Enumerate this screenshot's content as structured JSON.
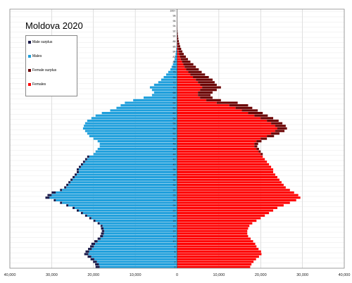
{
  "chart_data": {
    "type": "bar",
    "orientation": "horizontal",
    "title": "Moldova 2020",
    "xlabel": "",
    "ylabel": "",
    "xlim": [
      -40000,
      40000
    ],
    "x_ticks": [
      -40000,
      -30000,
      -20000,
      -10000,
      0,
      10000,
      20000,
      30000,
      40000
    ],
    "x_tick_labels": [
      "40,000",
      "30,000",
      "20,000",
      "10,000",
      "0",
      "10,000",
      "20,000",
      "30,000",
      "40,000"
    ],
    "age_tick_labels": [
      "0",
      "2",
      "4",
      "6",
      "8",
      "10",
      "12",
      "14",
      "16",
      "18",
      "20",
      "22",
      "24",
      "26",
      "28",
      "30",
      "32",
      "34",
      "36",
      "38",
      "40",
      "42",
      "44",
      "46",
      "48",
      "50",
      "52",
      "54",
      "56",
      "58",
      "60",
      "62",
      "64",
      "66",
      "68",
      "70",
      "72",
      "74",
      "76",
      "78",
      "80",
      "82",
      "84",
      "86",
      "88",
      "90",
      "92",
      "94",
      "96",
      "98",
      "100+"
    ],
    "categories": [
      "0",
      "1",
      "2",
      "3",
      "4",
      "5",
      "6",
      "7",
      "8",
      "9",
      "10",
      "11",
      "12",
      "13",
      "14",
      "15",
      "16",
      "17",
      "18",
      "19",
      "20",
      "21",
      "22",
      "23",
      "24",
      "25",
      "26",
      "27",
      "28",
      "29",
      "30",
      "31",
      "32",
      "33",
      "34",
      "35",
      "36",
      "37",
      "38",
      "39",
      "40",
      "41",
      "42",
      "43",
      "44",
      "45",
      "46",
      "47",
      "48",
      "49",
      "50",
      "51",
      "52",
      "53",
      "54",
      "55",
      "56",
      "57",
      "58",
      "59",
      "60",
      "61",
      "62",
      "63",
      "64",
      "65",
      "66",
      "67",
      "68",
      "69",
      "70",
      "71",
      "72",
      "73",
      "74",
      "75",
      "76",
      "77",
      "78",
      "79",
      "80",
      "81",
      "82",
      "83",
      "84",
      "85",
      "86",
      "87",
      "88",
      "89",
      "90",
      "91",
      "92",
      "93",
      "94",
      "95",
      "96",
      "97",
      "98",
      "99",
      "100+"
    ],
    "series": [
      {
        "name": "Males",
        "values": [
          18500,
          18700,
          19200,
          19800,
          20500,
          21200,
          21000,
          20400,
          19900,
          19600,
          19000,
          18300,
          17700,
          17500,
          17400,
          17600,
          17800,
          18500,
          19500,
          20500,
          21500,
          22500,
          23500,
          24500,
          26000,
          27500,
          29000,
          30500,
          30000,
          29000,
          27500,
          26500,
          26000,
          25500,
          25000,
          24500,
          24000,
          23500,
          23500,
          23000,
          22500,
          22000,
          21500,
          21000,
          20000,
          19500,
          19000,
          18500,
          18500,
          19000,
          20000,
          21000,
          21500,
          22000,
          22500,
          22300,
          22000,
          21500,
          20500,
          19500,
          18000,
          16000,
          14500,
          13500,
          12500,
          10500,
          8000,
          6000,
          5500,
          6000,
          6500,
          5500,
          4500,
          3800,
          3200,
          2600,
          2100,
          1600,
          1300,
          1000,
          800,
          600,
          450,
          350,
          250,
          180,
          120,
          90,
          60,
          40,
          30,
          20,
          15,
          10,
          7,
          5,
          3,
          2,
          1,
          1,
          1
        ]
      },
      {
        "name": "Females",
        "values": [
          17500,
          17800,
          18300,
          18900,
          19600,
          20200,
          20100,
          19500,
          19000,
          18700,
          18200,
          17600,
          17000,
          16800,
          16800,
          17000,
          17300,
          18000,
          19000,
          20000,
          21000,
          22000,
          23000,
          24000,
          25500,
          27000,
          28500,
          29500,
          29000,
          28000,
          27000,
          26000,
          25500,
          25000,
          24500,
          24000,
          23500,
          23000,
          23000,
          22500,
          22000,
          21500,
          21000,
          20500,
          20000,
          19500,
          19000,
          18500,
          18500,
          19000,
          20000,
          21500,
          22500,
          23500,
          24000,
          23500,
          22500,
          21500,
          20000,
          18500,
          17000,
          15500,
          14000,
          12500,
          9500,
          7000,
          5500,
          5000,
          5000,
          5500,
          6000,
          5500,
          5000,
          4500,
          3800,
          3200,
          2700,
          2200,
          1800,
          1500,
          1200,
          900,
          700,
          500,
          380,
          280,
          200,
          140,
          100,
          70,
          50,
          35,
          25,
          15,
          10,
          7,
          5,
          3,
          2,
          1,
          1
        ]
      },
      {
        "name": "Male surplus",
        "values": [
          1000,
          900,
          900,
          900,
          900,
          1000,
          900,
          900,
          900,
          900,
          800,
          700,
          700,
          700,
          600,
          600,
          500,
          500,
          500,
          500,
          500,
          500,
          500,
          500,
          500,
          500,
          500,
          1000,
          1000,
          1000,
          500,
          500,
          500,
          500,
          500,
          500,
          500,
          500,
          500,
          500,
          500,
          500,
          500,
          500,
          0,
          0,
          0,
          0,
          0,
          0,
          0,
          0,
          0,
          0,
          0,
          0,
          0,
          0,
          0,
          0,
          0,
          0,
          0,
          0,
          0,
          0,
          0,
          0,
          0,
          0,
          0,
          0,
          0,
          0,
          0,
          0,
          0,
          0,
          0,
          0,
          0,
          0,
          0,
          0,
          0,
          0,
          0,
          0,
          0,
          0,
          0,
          0,
          0,
          0,
          0,
          0,
          0,
          0,
          0,
          0,
          0
        ]
      },
      {
        "name": "Female surplus",
        "values": [
          0,
          0,
          0,
          0,
          0,
          0,
          0,
          0,
          0,
          0,
          0,
          0,
          0,
          0,
          0,
          0,
          0,
          0,
          0,
          0,
          0,
          0,
          0,
          0,
          0,
          0,
          0,
          0,
          0,
          0,
          0,
          0,
          0,
          0,
          0,
          0,
          0,
          0,
          0,
          0,
          0,
          0,
          0,
          0,
          500,
          500,
          600,
          700,
          900,
          1200,
          1500,
          1700,
          2000,
          2200,
          2300,
          2500,
          2700,
          2800,
          3000,
          3200,
          3500,
          3800,
          4000,
          4500,
          5000,
          3500,
          3000,
          3000,
          3500,
          4000,
          4500,
          4000,
          4000,
          4000,
          3800,
          3500,
          3200,
          3000,
          2700,
          2400,
          2000,
          1700,
          1400,
          1100,
          900,
          700,
          550,
          420,
          320,
          240,
          180,
          130,
          90,
          60,
          40,
          25,
          15,
          10,
          5,
          3,
          2
        ]
      }
    ],
    "colors": {
      "Males": "#1e9fdc",
      "Females": "#ff0000",
      "Male surplus": "#1a1a4a",
      "Female surplus": "#6b0000"
    },
    "legend_position": "top-left",
    "grid": true
  }
}
